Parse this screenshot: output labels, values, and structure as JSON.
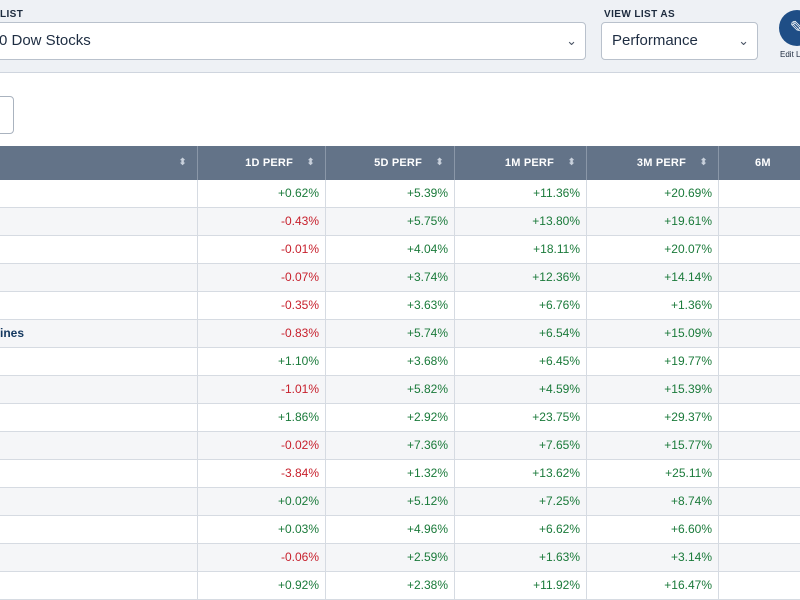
{
  "toolbar": {
    "list_label": "LIST",
    "list_value": "0 Dow Stocks",
    "view_label": "VIEW LIST AS",
    "view_value": "Performance",
    "edit_label": "Edit L"
  },
  "icons": {
    "chevron": "chevron-down-icon",
    "edit": "pencil-icon",
    "sort": "sort-icon"
  },
  "colors": {
    "header_bg": "#637388",
    "positive": "#1a7a3a",
    "negative": "#c7202c",
    "edit_button": "#1f4e86"
  },
  "table": {
    "columns": [
      "",
      "1D PERF",
      "5D PERF",
      "1M PERF",
      "3M PERF",
      "6M"
    ],
    "rows": [
      {
        "name": "",
        "d1": "+0.62%",
        "d5": "+5.39%",
        "m1": "+11.36%",
        "m3": "+20.69%"
      },
      {
        "name": "",
        "d1": "-0.43%",
        "d5": "+5.75%",
        "m1": "+13.80%",
        "m3": "+19.61%"
      },
      {
        "name": "",
        "d1": "-0.01%",
        "d5": "+4.04%",
        "m1": "+18.11%",
        "m3": "+20.07%"
      },
      {
        "name": "",
        "d1": "-0.07%",
        "d5": "+3.74%",
        "m1": "+12.36%",
        "m3": "+14.14%"
      },
      {
        "name": "",
        "d1": "-0.35%",
        "d5": "+3.63%",
        "m1": "+6.76%",
        "m3": "+1.36%"
      },
      {
        "name": "ines",
        "d1": "-0.83%",
        "d5": "+5.74%",
        "m1": "+6.54%",
        "m3": "+15.09%"
      },
      {
        "name": "",
        "d1": "+1.10%",
        "d5": "+3.68%",
        "m1": "+6.45%",
        "m3": "+19.77%"
      },
      {
        "name": "",
        "d1": "-1.01%",
        "d5": "+5.82%",
        "m1": "+4.59%",
        "m3": "+15.39%"
      },
      {
        "name": "",
        "d1": "+1.86%",
        "d5": "+2.92%",
        "m1": "+23.75%",
        "m3": "+29.37%"
      },
      {
        "name": "",
        "d1": "-0.02%",
        "d5": "+7.36%",
        "m1": "+7.65%",
        "m3": "+15.77%"
      },
      {
        "name": "",
        "d1": "-3.84%",
        "d5": "+1.32%",
        "m1": "+13.62%",
        "m3": "+25.11%"
      },
      {
        "name": "",
        "d1": "+0.02%",
        "d5": "+5.12%",
        "m1": "+7.25%",
        "m3": "+8.74%"
      },
      {
        "name": "",
        "d1": "+0.03%",
        "d5": "+4.96%",
        "m1": "+6.62%",
        "m3": "+6.60%"
      },
      {
        "name": "",
        "d1": "-0.06%",
        "d5": "+2.59%",
        "m1": "+1.63%",
        "m3": "+3.14%"
      },
      {
        "name": "",
        "d1": "+0.92%",
        "d5": "+2.38%",
        "m1": "+11.92%",
        "m3": "+16.47%"
      }
    ]
  }
}
